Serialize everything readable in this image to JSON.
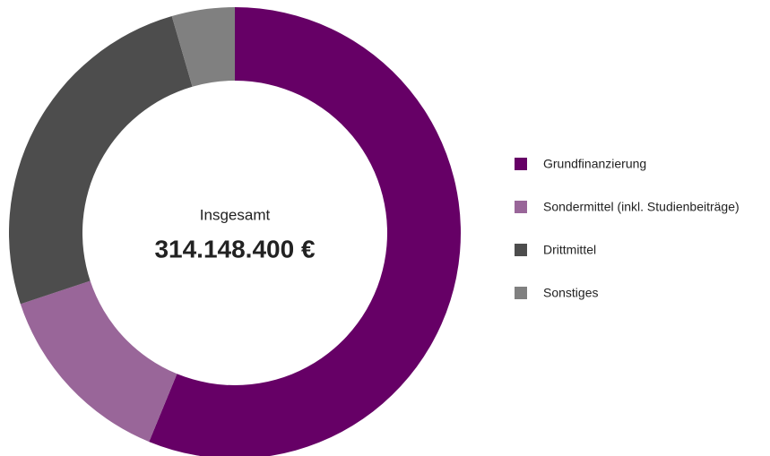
{
  "chart_data": {
    "type": "donut",
    "center_label": "Insgesamt",
    "center_value": "314.148.400 €",
    "categories": [
      "Grundfinanzierung",
      "Sondermittel (inkl. Studienbeiträge)",
      "Drittmittel",
      "Sonstiges"
    ],
    "values": [
      56.2,
      13.7,
      25.6,
      4.5
    ],
    "colors": [
      "#660066",
      "#996699",
      "#4d4d4d",
      "#808080"
    ],
    "legend": "right"
  }
}
